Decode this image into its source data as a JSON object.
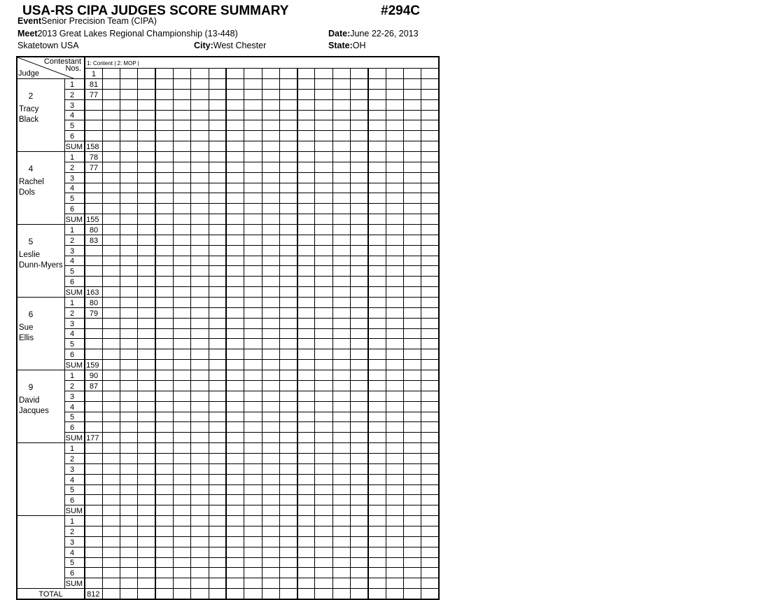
{
  "title": "USA-RS CIPA JUDGES SCORE SUMMARY",
  "form_no": "#294C",
  "event_label": "Event",
  "event": "Senior Precision Team  (CIPA)",
  "meet_label": "Meet",
  "meet": "2013 Great Lakes Regional Championship (13-448)",
  "date_label": "Date:",
  "date": "June 22-26, 2013",
  "venue": "Skatetown USA",
  "city_label": "City:",
  "city": "West Chester",
  "state_label": "State:",
  "state": "OH",
  "grid": {
    "contestant_label": "Contestant",
    "nos_label": "Nos.",
    "judge_label": "Judge",
    "legend": "1: Content | 2: MOP |",
    "contestant_nos": [
      "1"
    ],
    "row_labels": [
      "1",
      "2",
      "3",
      "4",
      "5",
      "6",
      "SUM"
    ],
    "judges": [
      {
        "number": "2",
        "first": "Tracy",
        "last": "Black",
        "scores": [
          [
            "81"
          ],
          [
            "77"
          ],
          [],
          [],
          [],
          []
        ],
        "sum": [
          "158"
        ]
      },
      {
        "number": "4",
        "first": "Rachel",
        "last": "Dols",
        "scores": [
          [
            "78"
          ],
          [
            "77"
          ],
          [],
          [],
          [],
          []
        ],
        "sum": [
          "155"
        ]
      },
      {
        "number": "5",
        "first": "Leslie",
        "last": "Dunn-Myers",
        "scores": [
          [
            "80"
          ],
          [
            "83"
          ],
          [],
          [],
          [],
          []
        ],
        "sum": [
          "163"
        ]
      },
      {
        "number": "6",
        "first": "Sue",
        "last": "Ellis",
        "scores": [
          [
            "80"
          ],
          [
            "79"
          ],
          [],
          [],
          [],
          []
        ],
        "sum": [
          "159"
        ]
      },
      {
        "number": "9",
        "first": "David",
        "last": "Jacques",
        "scores": [
          [
            "90"
          ],
          [
            "87"
          ],
          [],
          [],
          [],
          []
        ],
        "sum": [
          "177"
        ]
      },
      {
        "number": "",
        "first": "",
        "last": "",
        "scores": [
          [],
          [],
          [],
          [],
          [],
          []
        ],
        "sum": []
      },
      {
        "number": "",
        "first": "",
        "last": "",
        "scores": [
          [],
          [],
          [],
          [],
          [],
          []
        ],
        "sum": []
      }
    ],
    "total_label": "TOTAL",
    "totals": [
      "812"
    ]
  }
}
